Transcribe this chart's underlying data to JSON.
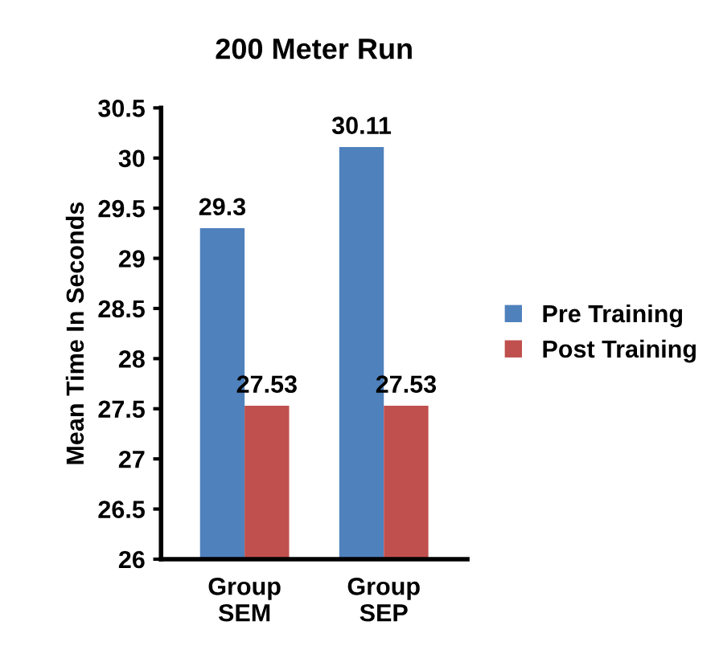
{
  "chart_data": {
    "type": "bar",
    "title": "200 Meter Run",
    "ylabel": "Mean Time In Seconds",
    "categories": [
      "Group\nSEM",
      "Group\nSEP"
    ],
    "series": [
      {
        "name": "Pre Training",
        "color": "#4f81bd",
        "values": [
          29.3,
          30.11
        ]
      },
      {
        "name": "Post Training",
        "color": "#c0504d",
        "values": [
          27.53,
          27.53
        ]
      }
    ],
    "ylim": [
      26,
      30.5
    ],
    "yticks": [
      26,
      26.5,
      27,
      27.5,
      28,
      28.5,
      29,
      29.5,
      30,
      30.5
    ],
    "data_labels": true,
    "legend": "right",
    "grid": false
  }
}
